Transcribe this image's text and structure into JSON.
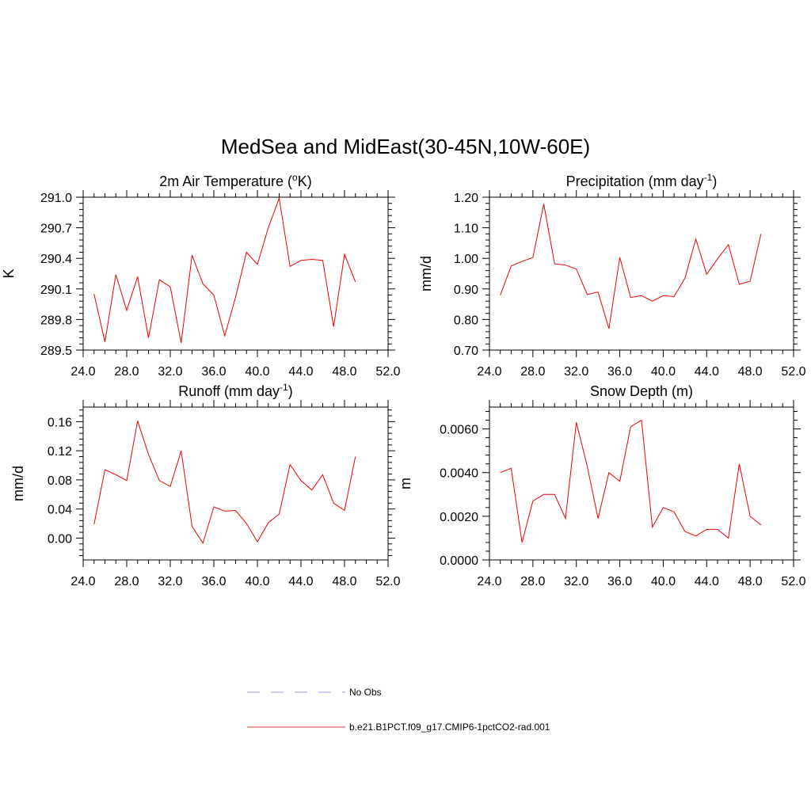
{
  "main_title": "MedSea and MidEast(30-45N,10W-60E)",
  "legend": {
    "entries": [
      {
        "label": "No Obs",
        "color": "#9999ee",
        "style": "dashed"
      },
      {
        "label": "b.e21.B1PCT.f09_g17.CMIP6-1pctCO2-rad.001",
        "color": "#ee3333",
        "style": "solid"
      }
    ]
  },
  "chart_data": [
    {
      "type": "line",
      "title": "2m Air Temperature (",
      "title_sup": "o",
      "title_tail": "K)",
      "ylabel": "K",
      "xlim": [
        24,
        52
      ],
      "ylim": [
        289.5,
        291.0
      ],
      "xticks": [
        "24.0",
        "28.0",
        "32.0",
        "36.0",
        "40.0",
        "44.0",
        "48.0",
        "52.0"
      ],
      "xtick_values": [
        24,
        28,
        32,
        36,
        40,
        44,
        48,
        52
      ],
      "yticks": [
        "289.5",
        "289.8",
        "290.1",
        "290.4",
        "290.7",
        "291.0"
      ],
      "ytick_values": [
        289.5,
        289.8,
        290.1,
        290.4,
        290.7,
        291.0
      ],
      "x": [
        25,
        26,
        27,
        28,
        29,
        30,
        31,
        32,
        33,
        34,
        35,
        36,
        37,
        38,
        39,
        40,
        41,
        42,
        43,
        44,
        45,
        46,
        47,
        48,
        49
      ],
      "series": [
        {
          "name": "b.e21.B1PCT.f09_g17.CMIP6-1pctCO2-rad.001",
          "color": "#ee0000",
          "values": [
            290.05,
            289.58,
            290.24,
            289.89,
            290.22,
            289.62,
            290.19,
            290.12,
            289.57,
            290.43,
            290.15,
            290.04,
            289.64,
            290.02,
            290.46,
            290.34,
            290.7,
            290.99,
            290.32,
            290.38,
            290.39,
            290.38,
            289.73,
            290.44,
            290.17
          ]
        }
      ]
    },
    {
      "type": "line",
      "title": "Precipitation (mm day",
      "title_sup": "-1",
      "title_tail": ")",
      "ylabel": "mm/d",
      "xlim": [
        24,
        52
      ],
      "ylim": [
        0.7,
        1.2
      ],
      "xticks": [
        "24.0",
        "28.0",
        "32.0",
        "36.0",
        "40.0",
        "44.0",
        "48.0",
        "52.0"
      ],
      "xtick_values": [
        24,
        28,
        32,
        36,
        40,
        44,
        48,
        52
      ],
      "yticks": [
        "0.70",
        "0.80",
        "0.90",
        "1.00",
        "1.10",
        "1.20"
      ],
      "ytick_values": [
        0.7,
        0.8,
        0.9,
        1.0,
        1.1,
        1.2
      ],
      "x": [
        25,
        26,
        27,
        28,
        29,
        30,
        31,
        32,
        33,
        34,
        35,
        36,
        37,
        38,
        39,
        40,
        41,
        42,
        43,
        44,
        45,
        46,
        47,
        48,
        49
      ],
      "series": [
        {
          "name": "b.e21.B1PCT.f09_g17.CMIP6-1pctCO2-rad.001",
          "color": "#ee0000",
          "values": [
            0.88,
            0.975,
            0.99,
            1.003,
            1.178,
            0.982,
            0.978,
            0.965,
            0.882,
            0.89,
            0.77,
            1.003,
            0.872,
            0.878,
            0.86,
            0.878,
            0.875,
            0.935,
            1.063,
            0.948,
            0.998,
            1.045,
            0.915,
            0.925,
            1.08
          ]
        }
      ]
    },
    {
      "type": "line",
      "title": "Runoff (mm day",
      "title_sup": "-1",
      "title_tail": ")",
      "ylabel": "mm/d",
      "xlim": [
        24,
        52
      ],
      "ylim": [
        -0.03,
        0.18
      ],
      "xticks": [
        "24.0",
        "28.0",
        "32.0",
        "36.0",
        "40.0",
        "44.0",
        "48.0",
        "52.0"
      ],
      "xtick_values": [
        24,
        28,
        32,
        36,
        40,
        44,
        48,
        52
      ],
      "yticks": [
        "0.00",
        "0.04",
        "0.08",
        "0.12",
        "0.16"
      ],
      "ytick_values": [
        0.0,
        0.04,
        0.08,
        0.12,
        0.16
      ],
      "x": [
        25,
        26,
        27,
        28,
        29,
        30,
        31,
        32,
        33,
        34,
        35,
        36,
        37,
        38,
        39,
        40,
        41,
        42,
        43,
        44,
        45,
        46,
        47,
        48,
        49
      ],
      "series": [
        {
          "name": "b.e21.B1PCT.f09_g17.CMIP6-1pctCO2-rad.001",
          "color": "#ee0000",
          "values": [
            0.019,
            0.094,
            0.087,
            0.079,
            0.161,
            0.115,
            0.079,
            0.071,
            0.12,
            0.016,
            -0.007,
            0.043,
            0.037,
            0.038,
            0.02,
            -0.005,
            0.021,
            0.033,
            0.101,
            0.079,
            0.066,
            0.087,
            0.048,
            0.038,
            0.112
          ]
        }
      ]
    },
    {
      "type": "line",
      "title": "Snow Depth (m)",
      "title_sup": "",
      "title_tail": "",
      "ylabel": "m",
      "xlim": [
        24,
        52
      ],
      "ylim": [
        0.0,
        0.007
      ],
      "xticks": [
        "24.0",
        "28.0",
        "32.0",
        "36.0",
        "40.0",
        "44.0",
        "48.0",
        "52.0"
      ],
      "xtick_values": [
        24,
        28,
        32,
        36,
        40,
        44,
        48,
        52
      ],
      "yticks": [
        "0.0000",
        "0.0020",
        "0.0040",
        "0.0060"
      ],
      "ytick_values": [
        0.0,
        0.002,
        0.004,
        0.006
      ],
      "x": [
        25,
        26,
        27,
        28,
        29,
        30,
        31,
        32,
        33,
        34,
        35,
        36,
        37,
        38,
        39,
        40,
        41,
        42,
        43,
        44,
        45,
        46,
        47,
        48,
        49
      ],
      "series": [
        {
          "name": "b.e21.B1PCT.f09_g17.CMIP6-1pctCO2-rad.001",
          "color": "#ee0000",
          "values": [
            0.004,
            0.0042,
            0.0008,
            0.0027,
            0.003,
            0.003,
            0.0019,
            0.0063,
            0.0043,
            0.0019,
            0.004,
            0.0036,
            0.0061,
            0.0064,
            0.0015,
            0.0024,
            0.0022,
            0.0013,
            0.0011,
            0.0014,
            0.0014,
            0.001,
            0.0044,
            0.002,
            0.0016
          ]
        }
      ]
    }
  ]
}
